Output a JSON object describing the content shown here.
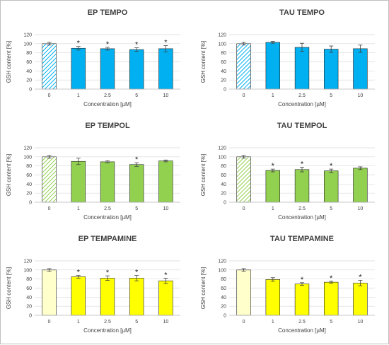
{
  "colors": {
    "blue": "#00b0f0",
    "green": "#92d050",
    "yellow": "#ffff00",
    "outline": "#262626",
    "grid": "#d9d9d9"
  },
  "chart_data": [
    {
      "type": "bar",
      "title": "EP TEMPO",
      "categories": [
        "0",
        "1",
        "2.5",
        "5",
        "10"
      ],
      "values": [
        100,
        90,
        89,
        87,
        89
      ],
      "errors": [
        3,
        4,
        3,
        4,
        7
      ],
      "significant": [
        false,
        true,
        true,
        true,
        true
      ],
      "significance_marker": "*",
      "control_pattern": "hatched",
      "color": "#00b0f0",
      "ylim": [
        0,
        120
      ],
      "yticks": [
        0,
        20,
        40,
        60,
        80,
        100,
        120
      ],
      "ylabel": "GSH content [%]",
      "xlabel": "Concentration [µM]",
      "grid": true
    },
    {
      "type": "bar",
      "title": "TAU TEMPO",
      "categories": [
        "0",
        "1",
        "2.5",
        "5",
        "10"
      ],
      "values": [
        100,
        103,
        92,
        88,
        89
      ],
      "errors": [
        3,
        2,
        9,
        7,
        8
      ],
      "significant": [
        false,
        false,
        false,
        false,
        false
      ],
      "significance_marker": "*",
      "control_pattern": "hatched",
      "color": "#00b0f0",
      "ylim": [
        0,
        120
      ],
      "yticks": [
        0,
        20,
        40,
        60,
        80,
        100,
        120
      ],
      "ylabel": "GSH content [%]",
      "xlabel": "Concentration [µM]",
      "grid": true
    },
    {
      "type": "bar",
      "title": "EP TEMPOL",
      "categories": [
        "0",
        "1",
        "2.5",
        "5",
        "10"
      ],
      "values": [
        100,
        90,
        89,
        83,
        91
      ],
      "errors": [
        3,
        7,
        2,
        4,
        2
      ],
      "significant": [
        false,
        false,
        false,
        true,
        false
      ],
      "significance_marker": "*",
      "control_pattern": "hatched",
      "color": "#92d050",
      "ylim": [
        0,
        120
      ],
      "yticks": [
        0,
        20,
        40,
        60,
        80,
        100,
        120
      ],
      "ylabel": "GSH content [%]",
      "xlabel": "Concentration [µM]",
      "grid": true
    },
    {
      "type": "bar",
      "title": "TAU TEMPOL",
      "categories": [
        "0",
        "1",
        "2.5",
        "5",
        "10"
      ],
      "values": [
        100,
        70,
        72,
        69,
        75
      ],
      "errors": [
        3,
        3,
        5,
        4,
        3
      ],
      "significant": [
        false,
        true,
        true,
        true,
        false
      ],
      "significance_marker": "*",
      "control_pattern": "hatched",
      "color": "#92d050",
      "ylim": [
        0,
        120
      ],
      "yticks": [
        0,
        20,
        40,
        60,
        80,
        100,
        120
      ],
      "ylabel": "GSH content [%]",
      "xlabel": "Concentration [µM]",
      "grid": true
    },
    {
      "type": "bar",
      "title": "EP TEMPAMINE",
      "categories": [
        "0",
        "1",
        "2.5",
        "5",
        "10"
      ],
      "values": [
        100,
        85,
        82,
        82,
        76
      ],
      "errors": [
        3,
        3,
        5,
        6,
        6
      ],
      "significant": [
        false,
        true,
        true,
        true,
        true
      ],
      "significance_marker": "*",
      "control_pattern": "plain",
      "color": "#ffff00",
      "ylim": [
        0,
        120
      ],
      "yticks": [
        0,
        20,
        40,
        60,
        80,
        100,
        120
      ],
      "ylabel": "GSH content [%]",
      "xlabel": "Concentration [µM]",
      "grid": true
    },
    {
      "type": "bar",
      "title": "TAU TEMPAMINE",
      "categories": [
        "0",
        "1",
        "2.5",
        "5",
        "10"
      ],
      "values": [
        100,
        79,
        69,
        73,
        71
      ],
      "errors": [
        3,
        4,
        3,
        2,
        6
      ],
      "significant": [
        false,
        false,
        true,
        true,
        true
      ],
      "significance_marker": "*",
      "control_pattern": "plain",
      "color": "#ffff00",
      "ylim": [
        0,
        120
      ],
      "yticks": [
        0,
        20,
        40,
        60,
        80,
        100,
        120
      ],
      "ylabel": "GSH content [%]",
      "xlabel": "Concentration [µM]",
      "grid": true
    }
  ]
}
